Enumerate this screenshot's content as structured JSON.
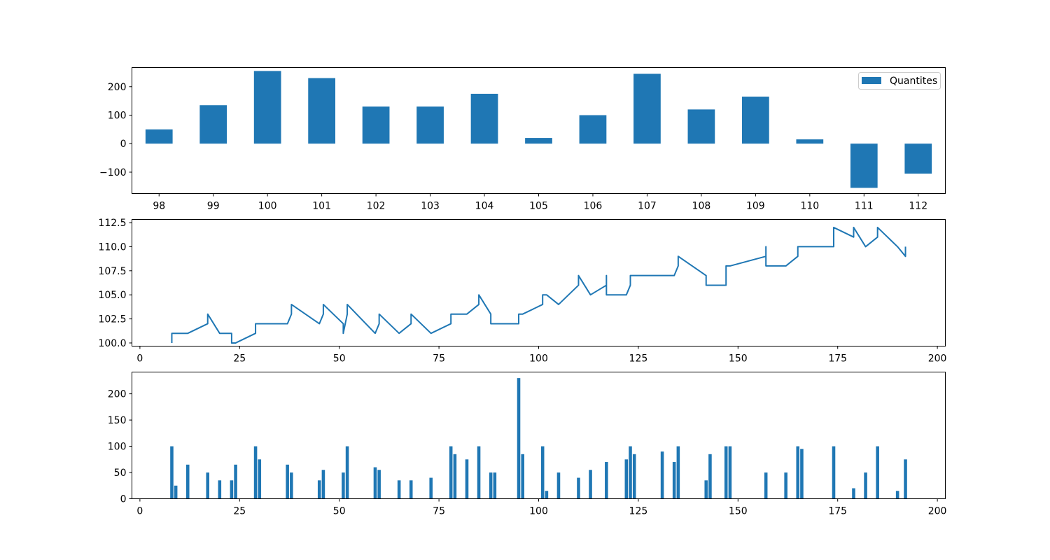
{
  "colors": {
    "series": "#1f77b4",
    "axes": "#000000",
    "background": "#ffffff"
  },
  "chart_data": [
    {
      "type": "bar",
      "legend": {
        "label": "Quantites",
        "placement": "top-right"
      },
      "categories": [
        "98",
        "99",
        "100",
        "101",
        "102",
        "103",
        "104",
        "105",
        "106",
        "107",
        "108",
        "109",
        "110",
        "111",
        "112"
      ],
      "values": [
        50,
        135,
        255,
        230,
        130,
        130,
        175,
        20,
        100,
        245,
        120,
        165,
        15,
        -155,
        -105
      ],
      "ylim": [
        -175,
        267
      ],
      "yticks": [
        -100,
        0,
        100,
        200
      ],
      "ytick_labels": [
        "−100",
        "0",
        "100",
        "200"
      ],
      "grid": false
    },
    {
      "type": "line",
      "x": [
        8,
        8,
        12,
        17,
        17,
        20,
        23,
        23,
        24,
        29,
        29,
        37,
        38,
        38,
        45,
        46,
        46,
        51,
        51,
        52,
        52,
        59,
        60,
        60,
        65,
        68,
        68,
        73,
        78,
        78,
        82,
        85,
        85,
        88,
        88,
        95,
        95,
        96,
        101,
        101,
        102,
        105,
        110,
        110,
        113,
        117,
        117,
        117,
        122,
        123,
        123,
        134,
        135,
        135,
        142,
        142,
        147,
        147,
        148,
        157,
        157,
        157,
        162,
        165,
        165,
        174,
        174,
        179,
        179,
        182,
        185,
        185,
        190,
        192,
        192
      ],
      "y": [
        100,
        101,
        101,
        102,
        103,
        101,
        101,
        100,
        100,
        101,
        102,
        102,
        103,
        104,
        102,
        103,
        104,
        102,
        101,
        103,
        104,
        101,
        102,
        103,
        101,
        102,
        103,
        101,
        102,
        103,
        103,
        104,
        105,
        103,
        102,
        102,
        103,
        103,
        104,
        105,
        105,
        104,
        106,
        107,
        105,
        106,
        107,
        105,
        105,
        106,
        107,
        107,
        108,
        109,
        107,
        106,
        106,
        108,
        108,
        109,
        110,
        108,
        108,
        109,
        110,
        110,
        112,
        111,
        112,
        110,
        111,
        112,
        110,
        109,
        110
      ],
      "xlim": [
        -2,
        202
      ],
      "ylim": [
        99.67,
        112.83
      ],
      "xticks": [
        0,
        25,
        50,
        75,
        100,
        125,
        150,
        175,
        200
      ],
      "yticks": [
        100.0,
        102.5,
        105.0,
        107.5,
        110.0,
        112.5
      ],
      "ytick_labels": [
        "100.0",
        "102.5",
        "105.0",
        "107.5",
        "110.0",
        "112.5"
      ],
      "grid": false
    },
    {
      "type": "bar",
      "x": [
        8,
        9,
        12,
        17,
        20,
        23,
        24,
        29,
        30,
        37,
        38,
        45,
        46,
        51,
        52,
        59,
        60,
        65,
        68,
        73,
        78,
        79,
        82,
        85,
        88,
        89,
        95,
        96,
        101,
        102,
        105,
        110,
        113,
        117,
        122,
        123,
        124,
        131,
        134,
        135,
        142,
        143,
        147,
        148,
        157,
        162,
        165,
        166,
        174,
        179,
        182,
        185,
        190,
        192
      ],
      "values": [
        100,
        25,
        65,
        50,
        35,
        35,
        65,
        100,
        75,
        65,
        50,
        35,
        55,
        50,
        100,
        60,
        55,
        35,
        35,
        40,
        100,
        85,
        75,
        100,
        50,
        50,
        230,
        85,
        100,
        15,
        50,
        40,
        55,
        70,
        75,
        100,
        85,
        90,
        70,
        100,
        35,
        85,
        100,
        100,
        50,
        50,
        100,
        95,
        100,
        20,
        50,
        100,
        15,
        75
      ],
      "bar_width": 0.8,
      "xlim": [
        -2,
        202
      ],
      "ylim": [
        0,
        241.5
      ],
      "xticks": [
        0,
        25,
        50,
        75,
        100,
        125,
        150,
        175,
        200
      ],
      "yticks": [
        0,
        50,
        100,
        150,
        200
      ],
      "ytick_labels": [
        "0",
        "50",
        "100",
        "150",
        "200"
      ],
      "grid": false
    }
  ]
}
